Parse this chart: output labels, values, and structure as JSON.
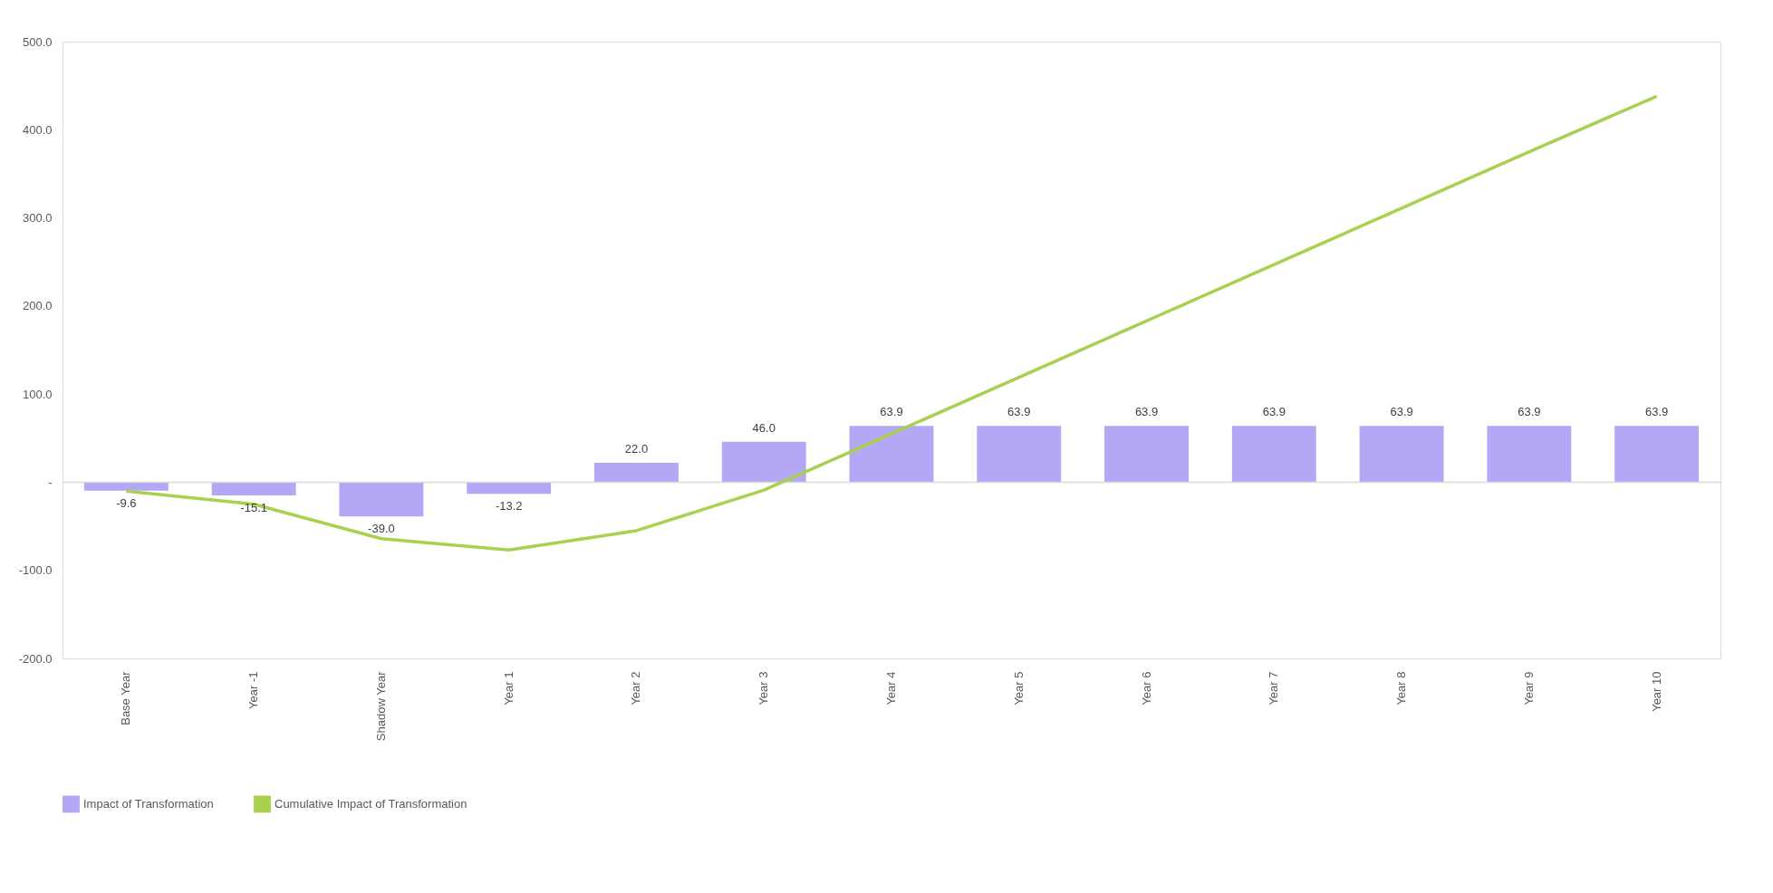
{
  "chart_data": {
    "type": "bar",
    "categories": [
      "Base Year",
      "Year -1",
      "Shadow Year",
      "Year 1",
      "Year 2",
      "Year 3",
      "Year 4",
      "Year 5",
      "Year 6",
      "Year 7",
      "Year 8",
      "Year 9",
      "Year 10"
    ],
    "series": [
      {
        "name": "Impact of Transformation",
        "color": "#b4a7f5",
        "values": [
          -9.6,
          -15.1,
          -39.0,
          -13.2,
          22.0,
          46.0,
          63.9,
          63.9,
          63.9,
          63.9,
          63.9,
          63.9,
          63.9
        ],
        "value_labels": [
          "-9.6",
          "-15.1",
          "-39.0",
          "-13.2",
          "22.0",
          "46.0",
          "63.9",
          "63.9",
          "63.9",
          "63.9",
          "63.9",
          "63.9",
          "63.9"
        ]
      },
      {
        "name": "Cumulative Impact of Transformation",
        "type": "line",
        "color": "#a9d04f",
        "values": [
          -10,
          -25,
          -64,
          -77,
          -55,
          -9,
          55,
          119,
          183,
          247,
          311,
          375,
          438
        ]
      }
    ],
    "ylim": [
      -200,
      500
    ],
    "yticks": [
      {
        "value": -200,
        "label": "-200.0"
      },
      {
        "value": -100,
        "label": "-100.0"
      },
      {
        "value": 0,
        "label": "-"
      },
      {
        "value": 100,
        "label": "100.0"
      },
      {
        "value": 200,
        "label": "200.0"
      },
      {
        "value": 300,
        "label": "300.0"
      },
      {
        "value": 400,
        "label": "400.0"
      },
      {
        "value": 500,
        "label": "500.0"
      }
    ],
    "ref_lines": [
      {
        "axis": "y",
        "value": 0,
        "color": "#d9d9d9"
      }
    ],
    "grid": false,
    "legend": "bottom"
  }
}
